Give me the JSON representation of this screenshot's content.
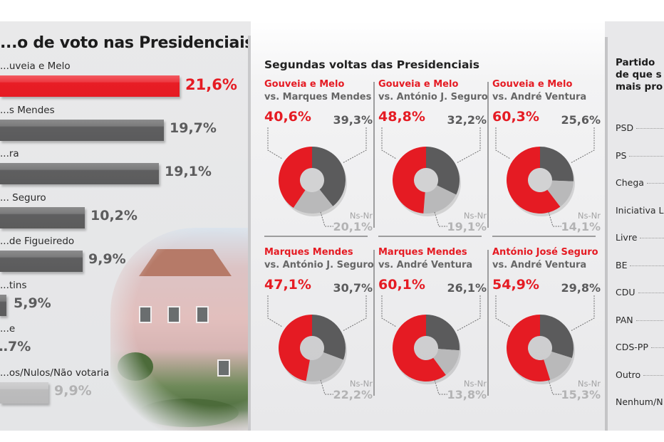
{
  "chart_data": [
    {
      "type": "bar",
      "orientation": "horizontal",
      "title": "...o de voto nas Presidenciais",
      "categories": [
        "...uveia e Melo",
        "...s Mendes",
        "...ra",
        "... Seguro",
        "...de Figueiredo",
        "...tins",
        "...e",
        "...os/Nulos/Não votaria"
      ],
      "values": [
        21.6,
        19.7,
        19.1,
        10.2,
        9.9,
        5.9,
        null,
        9.9
      ],
      "value_labels": [
        "21,6%",
        "19,7%",
        "19,1%",
        "10,2%",
        "9,9%",
        "5,9%",
        "…7%",
        "9,9%"
      ],
      "bar_styles": [
        "red",
        "dark",
        "dark",
        "dark",
        "dark",
        "dark",
        "dark",
        "light"
      ],
      "xlim": [
        0,
        21.6
      ]
    },
    {
      "type": "pie",
      "variant": "donut",
      "title": "Segundas voltas das Presidenciais",
      "panels": [
        {
          "candidate": "Gouveia e Melo",
          "opponent": "vs. Marques Mendes",
          "candidate_pct": 40.6,
          "opponent_pct": 39.3,
          "nsnr_pct": 20.1,
          "candidate_label": "40,6%",
          "opponent_label": "39,3%",
          "nsnr_label": "20,1%"
        },
        {
          "candidate": "Gouveia e Melo",
          "opponent": "vs. António J. Seguro",
          "candidate_pct": 48.8,
          "opponent_pct": 32.2,
          "nsnr_pct": 19.1,
          "candidate_label": "48,8%",
          "opponent_label": "32,2%",
          "nsnr_label": "19,1%"
        },
        {
          "candidate": "Gouveia e Melo",
          "opponent": "vs. André Ventura",
          "candidate_pct": 60.3,
          "opponent_pct": 25.6,
          "nsnr_pct": 14.1,
          "candidate_label": "60,3%",
          "opponent_label": "25,6%",
          "nsnr_label": "14,1%"
        },
        {
          "candidate": "Marques Mendes",
          "opponent": "vs. António J. Seguro",
          "candidate_pct": 47.1,
          "opponent_pct": 30.7,
          "nsnr_pct": 22.2,
          "candidate_label": "47,1%",
          "opponent_label": "30,7%",
          "nsnr_label": "22,2%"
        },
        {
          "candidate": "Marques Mendes",
          "opponent": "vs. André Ventura",
          "candidate_pct": 60.1,
          "opponent_pct": 26.1,
          "nsnr_pct": 13.8,
          "candidate_label": "60,1%",
          "opponent_label": "26,1%",
          "nsnr_label": "13,8%"
        },
        {
          "candidate": "António José Seguro",
          "opponent": "vs. André Ventura",
          "candidate_pct": 54.9,
          "opponent_pct": 29.8,
          "nsnr_pct": 15.3,
          "candidate_label": "54,9%",
          "opponent_label": "29,8%",
          "nsnr_label": "15,3%"
        }
      ],
      "nsnr_text": "Ns-Nr",
      "colors": {
        "candidate": "#e51b23",
        "opponent": "#5b5b5c",
        "nsnr": "#b9b9ba"
      }
    }
  ],
  "right_panel": {
    "title_lines": [
      "Partido",
      "de que s",
      "mais pro"
    ],
    "parties": [
      "PSD",
      "PS",
      "Chega",
      "Iniciativa L",
      "Livre",
      "BE",
      "CDU",
      "PAN",
      "CDS-PP",
      "Outro",
      "Nenhum/N"
    ]
  },
  "colors": {
    "red": "#e51b23",
    "dark_gray": "#5b5b5c",
    "light_gray": "#b9b9ba",
    "panel_bg": "#e8e8ea"
  }
}
